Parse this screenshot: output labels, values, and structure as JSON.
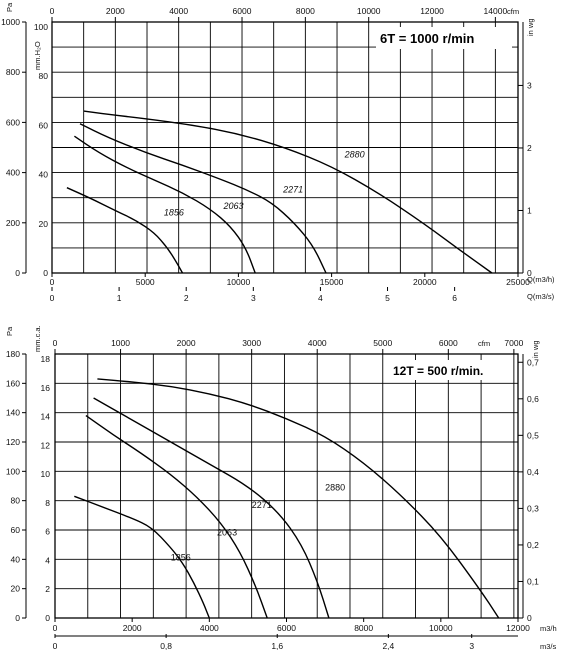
{
  "chart_data": [
    {
      "type": "line",
      "title": "6T = 1000 r/min",
      "primary_x": {
        "ticks": [
          0,
          5000,
          10000,
          15000,
          20000,
          25000
        ],
        "label": "Q(m3/h)",
        "lim": [
          0,
          25000
        ]
      },
      "secondary_x_bottom": {
        "ticks": [
          0,
          1,
          2,
          3,
          4,
          5,
          6
        ],
        "label": "Q(m3/s)"
      },
      "secondary_x_top": {
        "ticks": [
          0,
          2000,
          4000,
          6000,
          8000,
          10000,
          12000,
          14000
        ],
        "label": "cfm"
      },
      "left_y_pa": {
        "ticks": [
          0,
          200,
          400,
          600,
          800,
          1000
        ],
        "label": "Pa",
        "lim": [
          0,
          1000
        ]
      },
      "left_y_mmh2o": {
        "ticks": [
          0,
          20,
          40,
          60,
          80,
          100
        ],
        "label": "mm.H₂O"
      },
      "right_y_inwg": {
        "ticks": [
          0,
          1,
          2,
          3
        ],
        "label": "in wg"
      },
      "series": [
        {
          "name": "1856",
          "x": [
            800,
            2000,
            3500,
            4500,
            5500,
            6200,
            6700,
            7000
          ],
          "y": [
            340,
            300,
            245,
            210,
            160,
            100,
            40,
            0
          ]
        },
        {
          "name": "2063",
          "x": [
            1200,
            2500,
            4000,
            5500,
            7000,
            8500,
            9600,
            10400,
            10900
          ],
          "y": [
            545,
            480,
            420,
            370,
            320,
            255,
            185,
            100,
            0
          ]
        },
        {
          "name": "2271",
          "x": [
            1500,
            3000,
            5000,
            7000,
            9000,
            10500,
            11800,
            13000,
            14000,
            14700
          ],
          "y": [
            595,
            540,
            480,
            430,
            375,
            330,
            280,
            200,
            110,
            0
          ]
        },
        {
          "name": "2880",
          "x": [
            1700,
            3000,
            5000,
            7500,
            10000,
            12500,
            15000,
            17500,
            20000,
            22000,
            23600
          ],
          "y": [
            645,
            632,
            615,
            590,
            555,
            500,
            425,
            320,
            195,
            85,
            0
          ]
        }
      ]
    },
    {
      "type": "line",
      "title": "12T = 500 r/min.",
      "primary_x": {
        "ticks": [
          0,
          2000,
          4000,
          6000,
          8000,
          10000,
          12000
        ],
        "label": "m3/h",
        "lim": [
          0,
          12000
        ]
      },
      "secondary_x_bottom": {
        "ticks": [
          "0",
          "0,8",
          "1,6",
          "2,4",
          "3"
        ],
        "label": "m3/s"
      },
      "secondary_x_top": {
        "ticks": [
          0,
          1000,
          2000,
          3000,
          4000,
          5000,
          6000,
          7000
        ],
        "label": "cfm"
      },
      "left_y_pa": {
        "ticks": [
          0,
          20,
          40,
          60,
          80,
          100,
          120,
          140,
          160,
          180
        ],
        "label": "Pa",
        "lim": [
          0,
          180
        ]
      },
      "left_y_mmca": {
        "ticks": [
          0,
          2,
          4,
          6,
          8,
          10,
          12,
          14,
          16,
          18
        ],
        "label": "mm.c.a."
      },
      "right_y_inwg": {
        "ticks": [
          "0",
          "0,1",
          "0,2",
          "0,3",
          "0,4",
          "0,5",
          "0,6",
          "0,7"
        ],
        "label": "in wg"
      },
      "series": [
        {
          "name": "1856",
          "x": [
            500,
            1200,
            2000,
            2500,
            3000,
            3300,
            3600,
            3850,
            4000
          ],
          "y": [
            83,
            76,
            68,
            62,
            48,
            38,
            24,
            10,
            0
          ]
        },
        {
          "name": "2063",
          "x": [
            800,
            1500,
            2200,
            3000,
            3700,
            4300,
            4800,
            5200,
            5500
          ],
          "y": [
            138,
            125,
            113,
            98,
            82,
            65,
            45,
            22,
            0
          ]
        },
        {
          "name": "2271",
          "x": [
            1000,
            2000,
            3000,
            4000,
            5000,
            5800,
            6400,
            6800,
            7100
          ],
          "y": [
            150,
            135,
            120,
            105,
            90,
            72,
            50,
            25,
            0
          ]
        },
        {
          "name": "2880",
          "x": [
            1100,
            2000,
            3000,
            4000,
            5000,
            6000,
            7000,
            8000,
            9000,
            10000,
            11000,
            11500
          ],
          "y": [
            163,
            161,
            158,
            153,
            146,
            136,
            124,
            106,
            83,
            56,
            20,
            0
          ]
        }
      ]
    }
  ],
  "labels": {
    "top": {
      "title": "6T = 1000 r/min",
      "pa_unit": "Pa",
      "mm_unit": "mm.H₂O",
      "cfm_unit": "cfm",
      "inwg_unit": "in wg",
      "q_m3h_unit": "Q(m3/h)",
      "q_m3s_unit": "Q(m3/s)"
    },
    "bottom": {
      "title": "12T = 500 r/min.",
      "pa_unit": "Pa",
      "mm_unit": "mm.c.a.",
      "cfm_unit": "cfm",
      "inwg_unit": "in wg",
      "q_m3h_unit": "m3/h",
      "q_m3s_unit": "m3/s"
    }
  }
}
